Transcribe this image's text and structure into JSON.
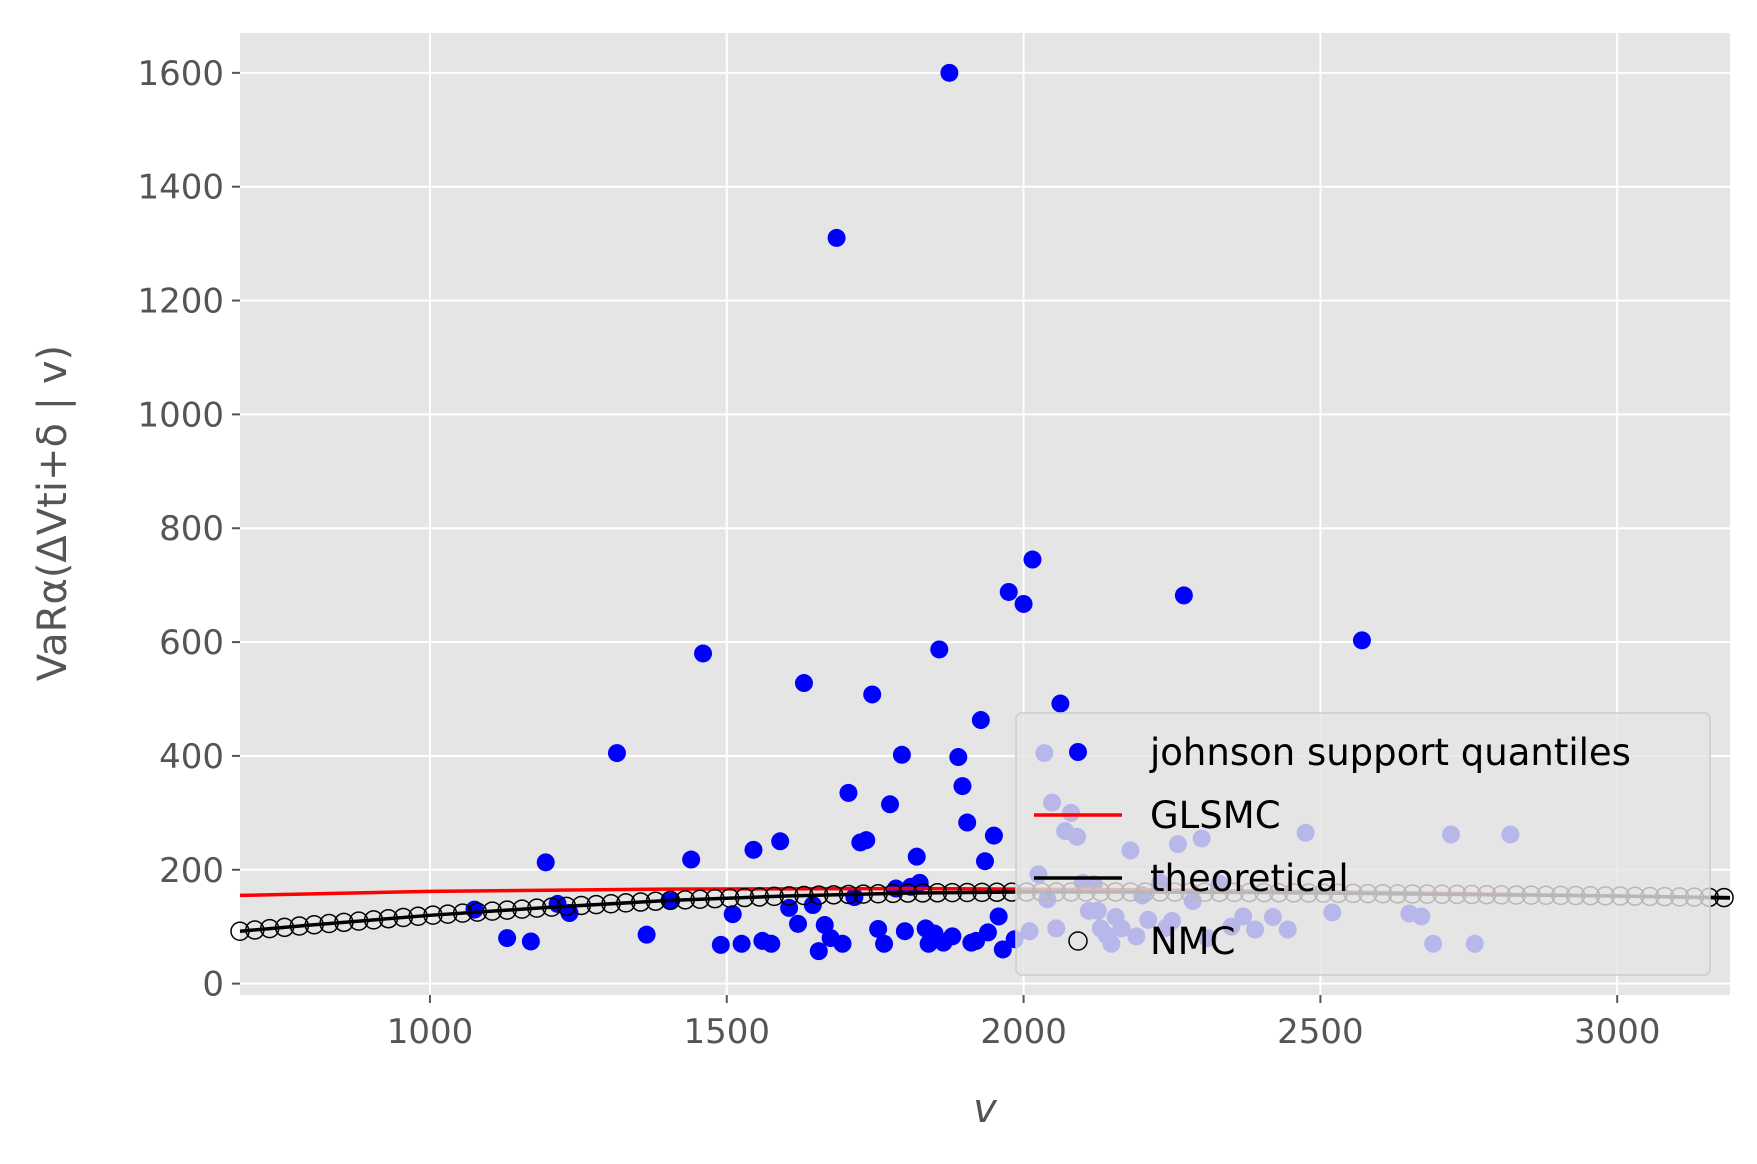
{
  "chart_data": {
    "type": "scatter",
    "xlabel": "v",
    "ylabel": "VaRα(ΔVti+δ | v)",
    "xlim": [
      680,
      3190
    ],
    "ylim": [
      -20,
      1670
    ],
    "xticks": [
      1000,
      1500,
      2000,
      2500,
      3000
    ],
    "yticks": [
      0,
      200,
      400,
      600,
      800,
      1000,
      1200,
      1400,
      1600
    ],
    "grid": true,
    "legend_position": "lower right",
    "series": [
      {
        "name": "johnson support quantiles",
        "kind": "scatter",
        "color": "#0000ff",
        "points": [
          [
            1075,
            130
          ],
          [
            1130,
            80
          ],
          [
            1170,
            74
          ],
          [
            1195,
            213
          ],
          [
            1215,
            140
          ],
          [
            1235,
            124
          ],
          [
            1315,
            405
          ],
          [
            1365,
            86
          ],
          [
            1405,
            145
          ],
          [
            1440,
            218
          ],
          [
            1460,
            580
          ],
          [
            1490,
            68
          ],
          [
            1510,
            122
          ],
          [
            1525,
            70
          ],
          [
            1545,
            235
          ],
          [
            1560,
            75
          ],
          [
            1575,
            70
          ],
          [
            1590,
            250
          ],
          [
            1605,
            133
          ],
          [
            1620,
            105
          ],
          [
            1630,
            528
          ],
          [
            1645,
            138
          ],
          [
            1655,
            57
          ],
          [
            1665,
            103
          ],
          [
            1675,
            80
          ],
          [
            1685,
            1310
          ],
          [
            1695,
            70
          ],
          [
            1705,
            335
          ],
          [
            1715,
            152
          ],
          [
            1725,
            248
          ],
          [
            1735,
            252
          ],
          [
            1745,
            508
          ],
          [
            1755,
            96
          ],
          [
            1765,
            70
          ],
          [
            1775,
            315
          ],
          [
            1785,
            167
          ],
          [
            1795,
            402
          ],
          [
            1800,
            92
          ],
          [
            1810,
            170
          ],
          [
            1820,
            223
          ],
          [
            1825,
            177
          ],
          [
            1835,
            97
          ],
          [
            1840,
            70
          ],
          [
            1850,
            88
          ],
          [
            1858,
            587
          ],
          [
            1865,
            72
          ],
          [
            1875,
            1600
          ],
          [
            1880,
            83
          ],
          [
            1890,
            398
          ],
          [
            1897,
            347
          ],
          [
            1905,
            283
          ],
          [
            1912,
            72
          ],
          [
            1920,
            75
          ],
          [
            1928,
            463
          ],
          [
            1935,
            215
          ],
          [
            1940,
            90
          ],
          [
            1950,
            260
          ],
          [
            1958,
            118
          ],
          [
            1965,
            60
          ],
          [
            1975,
            688
          ],
          [
            1985,
            78
          ],
          [
            2000,
            667
          ],
          [
            2010,
            92
          ],
          [
            2015,
            745
          ],
          [
            2025,
            192
          ],
          [
            2035,
            405
          ],
          [
            2040,
            148
          ],
          [
            2048,
            318
          ],
          [
            2055,
            97
          ],
          [
            2062,
            492
          ],
          [
            2070,
            268
          ],
          [
            2080,
            300
          ],
          [
            2090,
            258
          ],
          [
            2100,
            177
          ],
          [
            2110,
            128
          ],
          [
            2118,
            175
          ],
          [
            2125,
            128
          ],
          [
            2130,
            97
          ],
          [
            2140,
            85
          ],
          [
            2148,
            70
          ],
          [
            2155,
            117
          ],
          [
            2165,
            97
          ],
          [
            2180,
            234
          ],
          [
            2190,
            83
          ],
          [
            2200,
            155
          ],
          [
            2210,
            112
          ],
          [
            2230,
            177
          ],
          [
            2240,
            98
          ],
          [
            2250,
            110
          ],
          [
            2260,
            245
          ],
          [
            2270,
            682
          ],
          [
            2285,
            145
          ],
          [
            2300,
            255
          ],
          [
            2310,
            80
          ],
          [
            2330,
            175
          ],
          [
            2350,
            100
          ],
          [
            2370,
            118
          ],
          [
            2390,
            95
          ],
          [
            2420,
            117
          ],
          [
            2445,
            95
          ],
          [
            2475,
            265
          ],
          [
            2520,
            125
          ],
          [
            2570,
            603
          ],
          [
            2650,
            123
          ],
          [
            2670,
            118
          ],
          [
            2690,
            70
          ],
          [
            2720,
            262
          ],
          [
            2760,
            70
          ],
          [
            2820,
            262
          ]
        ]
      },
      {
        "name": "GLSMC",
        "kind": "line",
        "color": "#ff0000",
        "points": [
          [
            680,
            155
          ],
          [
            1000,
            162
          ],
          [
            1400,
            166
          ],
          [
            1800,
            167
          ],
          [
            2200,
            165
          ],
          [
            2600,
            160
          ],
          [
            3000,
            154
          ],
          [
            3190,
            150
          ]
        ]
      },
      {
        "name": "theoretical",
        "kind": "line",
        "color": "#000000",
        "points": [
          [
            680,
            92
          ],
          [
            800,
            103
          ],
          [
            1000,
            120
          ],
          [
            1200,
            134
          ],
          [
            1400,
            146
          ],
          [
            1600,
            154
          ],
          [
            1800,
            159
          ],
          [
            2000,
            161
          ],
          [
            2200,
            161
          ],
          [
            2400,
            160
          ],
          [
            2600,
            158
          ],
          [
            2800,
            156
          ],
          [
            3000,
            154
          ],
          [
            3190,
            151
          ]
        ]
      },
      {
        "name": "NMC",
        "kind": "scatter-hollow",
        "color": "#000000",
        "points_from": "theoretical",
        "x_start": 680,
        "x_end": 3190,
        "x_step": 25
      }
    ]
  }
}
